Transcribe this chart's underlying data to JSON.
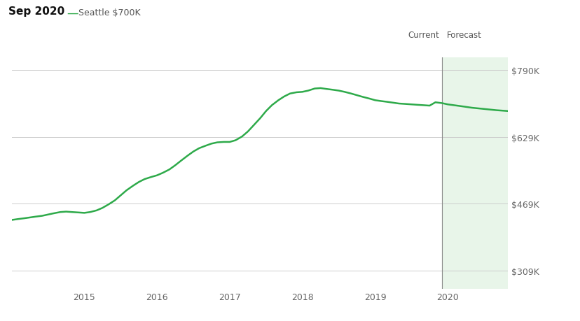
{
  "title_left": "Sep 2020",
  "legend_label": "Seattle $700K",
  "line_color": "#2eaa4a",
  "forecast_bg_color": "#e8f5e9",
  "current_line_color": "#888888",
  "ytick_labels": [
    "$309K",
    "$469K",
    "$629K",
    "$790K"
  ],
  "ytick_values": [
    309000,
    469000,
    629000,
    790000
  ],
  "ylim": [
    265000,
    820000
  ],
  "xlim_start": 2014.0,
  "xlim_end": 2020.83,
  "current_x": 2019.92,
  "xtick_positions": [
    2015,
    2016,
    2017,
    2018,
    2019,
    2020
  ],
  "xtick_labels": [
    "2015",
    "2016",
    "2017",
    "2018",
    "2019",
    "2020"
  ],
  "current_label": "Current",
  "forecast_label": "Forecast",
  "x_data": [
    2014.0,
    2014.08,
    2014.17,
    2014.25,
    2014.33,
    2014.42,
    2014.5,
    2014.58,
    2014.67,
    2014.75,
    2014.83,
    2014.92,
    2015.0,
    2015.08,
    2015.17,
    2015.25,
    2015.33,
    2015.42,
    2015.5,
    2015.58,
    2015.67,
    2015.75,
    2015.83,
    2015.92,
    2016.0,
    2016.08,
    2016.17,
    2016.25,
    2016.33,
    2016.42,
    2016.5,
    2016.58,
    2016.67,
    2016.75,
    2016.83,
    2016.92,
    2017.0,
    2017.08,
    2017.17,
    2017.25,
    2017.33,
    2017.42,
    2017.5,
    2017.58,
    2017.67,
    2017.75,
    2017.83,
    2017.92,
    2018.0,
    2018.08,
    2018.17,
    2018.25,
    2018.33,
    2018.42,
    2018.5,
    2018.58,
    2018.67,
    2018.75,
    2018.83,
    2018.92,
    2019.0,
    2019.08,
    2019.17,
    2019.25,
    2019.33,
    2019.42,
    2019.5,
    2019.58,
    2019.67,
    2019.75,
    2019.83,
    2019.92,
    2020.0,
    2020.17,
    2020.33,
    2020.5,
    2020.67,
    2020.83
  ],
  "y_data": [
    430000,
    432000,
    434000,
    436000,
    438000,
    440000,
    443000,
    446000,
    449000,
    450000,
    449000,
    448000,
    447000,
    449000,
    453000,
    459000,
    467000,
    477000,
    489000,
    501000,
    512000,
    521000,
    528000,
    533000,
    537000,
    543000,
    551000,
    561000,
    572000,
    584000,
    594000,
    602000,
    608000,
    613000,
    616000,
    617000,
    617000,
    621000,
    630000,
    642000,
    657000,
    674000,
    691000,
    705000,
    717000,
    726000,
    733000,
    736000,
    737000,
    740000,
    745000,
    746000,
    744000,
    742000,
    740000,
    737000,
    733000,
    729000,
    725000,
    721000,
    717000,
    715000,
    713000,
    711000,
    709000,
    708000,
    707000,
    706000,
    705000,
    704000,
    712000,
    710000,
    707000,
    703000,
    699000,
    696000,
    693000,
    691000
  ]
}
